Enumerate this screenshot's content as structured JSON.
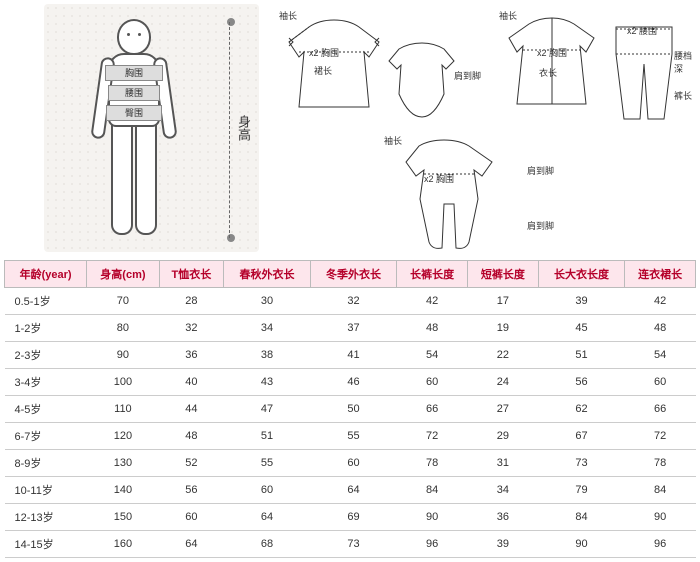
{
  "body_diagram": {
    "bands": [
      "胸围",
      "腰围",
      "臀围"
    ],
    "height_label": "身高"
  },
  "garment_labels": {
    "sleeve": "袖长",
    "chest_x2": "x2 胸围",
    "skirt": "裙长",
    "shoulder_to_foot": "肩到脚",
    "garment_length": "衣长",
    "waist_x2": "x2 腰围",
    "crotch_depth": "腰档深",
    "pants_length": "裤长"
  },
  "table": {
    "columns": [
      "年龄(year)",
      "身高(cm)",
      "T恤衣长",
      "春秋外衣长",
      "冬季外衣长",
      "长裤长度",
      "短裤长度",
      "长大衣长度",
      "连衣裙长"
    ],
    "rows": [
      [
        "0.5-1岁",
        "70",
        "28",
        "30",
        "32",
        "42",
        "17",
        "39",
        "42"
      ],
      [
        "1-2岁",
        "80",
        "32",
        "34",
        "37",
        "48",
        "19",
        "45",
        "48"
      ],
      [
        "2-3岁",
        "90",
        "36",
        "38",
        "41",
        "54",
        "22",
        "51",
        "54"
      ],
      [
        "3-4岁",
        "100",
        "40",
        "43",
        "46",
        "60",
        "24",
        "56",
        "60"
      ],
      [
        "4-5岁",
        "110",
        "44",
        "47",
        "50",
        "66",
        "27",
        "62",
        "66"
      ],
      [
        "6-7岁",
        "120",
        "48",
        "51",
        "55",
        "72",
        "29",
        "67",
        "72"
      ],
      [
        "8-9岁",
        "130",
        "52",
        "55",
        "60",
        "78",
        "31",
        "73",
        "78"
      ],
      [
        "10-11岁",
        "140",
        "56",
        "60",
        "64",
        "84",
        "34",
        "79",
        "84"
      ],
      [
        "12-13岁",
        "150",
        "60",
        "64",
        "69",
        "90",
        "36",
        "84",
        "90"
      ],
      [
        "14-15岁",
        "160",
        "64",
        "68",
        "73",
        "96",
        "39",
        "90",
        "96"
      ]
    ]
  },
  "style": {
    "header_bg": "#fde6ec",
    "header_color": "#b5002a",
    "border_color": "#bbb",
    "body_diagram_bg": "#f5f3f0"
  }
}
